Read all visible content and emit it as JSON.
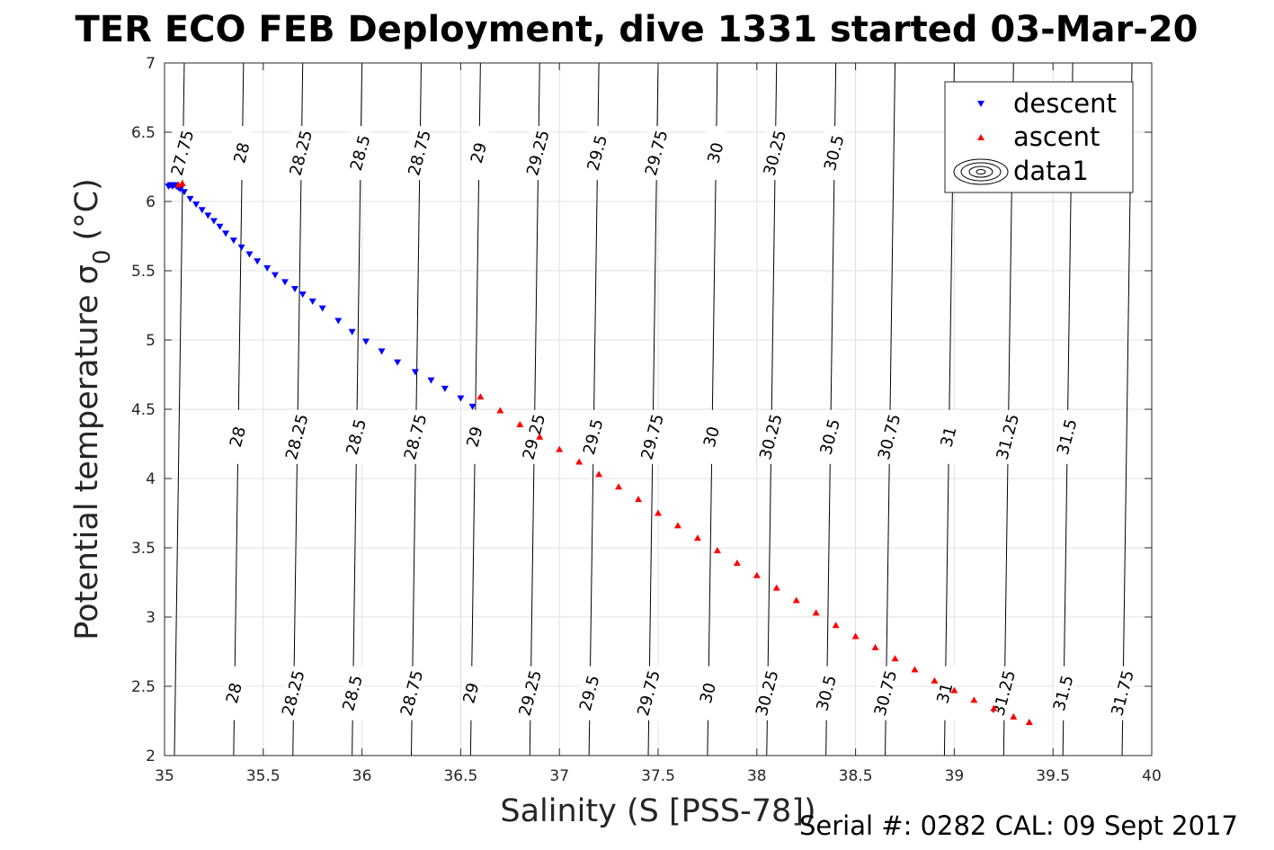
{
  "chart_data": {
    "type": "scatter",
    "title": "TER ECO FEB Deployment, dive 1331 started 03-Mar-20",
    "xlabel": "Salinity (S [PSS-78])",
    "ylabel": "Potential temperature σ",
    "ylabel_subscript": "0",
    "ylabel_unit": "(°C)",
    "xlim": [
      35,
      40
    ],
    "ylim": [
      2,
      7
    ],
    "xticks": [
      "35",
      "35.5",
      "36",
      "36.5",
      "37",
      "37.5",
      "38",
      "38.5",
      "39",
      "39.5",
      "40"
    ],
    "yticks": [
      "2",
      "2.5",
      "3",
      "3.5",
      "4",
      "4.5",
      "5",
      "5.5",
      "6",
      "6.5",
      "7"
    ],
    "grid": true,
    "legend_position": "top-right",
    "colors": {
      "descent": "#0000ff",
      "ascent": "#ff0000",
      "contour": "#000000",
      "grid": "#e0e0e0"
    },
    "series": [
      {
        "name": "descent",
        "marker": "triangle-down",
        "color": "#0000ff",
        "x": [
          35.02,
          35.03,
          35.04,
          35.05,
          35.06,
          35.07,
          35.08,
          35.1,
          35.13,
          35.16,
          35.19,
          35.22,
          35.25,
          35.28,
          35.31,
          35.35,
          35.39,
          35.43,
          35.47,
          35.52,
          35.56,
          35.61,
          35.66,
          35.7,
          35.75,
          35.8,
          35.88,
          35.95,
          36.02,
          36.1,
          36.18,
          36.27,
          36.35,
          36.42,
          36.5,
          36.56
        ],
        "y": [
          6.11,
          6.12,
          6.11,
          6.12,
          6.11,
          6.1,
          6.09,
          6.07,
          6.02,
          5.98,
          5.94,
          5.9,
          5.86,
          5.82,
          5.77,
          5.72,
          5.67,
          5.62,
          5.57,
          5.52,
          5.47,
          5.42,
          5.37,
          5.33,
          5.28,
          5.23,
          5.14,
          5.06,
          4.99,
          4.92,
          4.84,
          4.77,
          4.71,
          4.65,
          4.58,
          4.52
        ]
      },
      {
        "name": "ascent",
        "marker": "triangle-up",
        "color": "#ff0000",
        "x": [
          35.07,
          35.09,
          36.6,
          36.7,
          36.8,
          36.9,
          37.0,
          37.1,
          37.2,
          37.3,
          37.4,
          37.5,
          37.6,
          37.7,
          37.8,
          37.9,
          38.0,
          38.1,
          38.2,
          38.3,
          38.4,
          38.5,
          38.6,
          38.7,
          38.8,
          38.9,
          39.0,
          39.1,
          39.2,
          39.3,
          39.38
        ],
        "y": [
          6.12,
          6.13,
          4.59,
          4.49,
          4.39,
          4.3,
          4.21,
          4.12,
          4.03,
          3.94,
          3.85,
          3.75,
          3.66,
          3.57,
          3.48,
          3.39,
          3.3,
          3.21,
          3.12,
          3.03,
          2.94,
          2.86,
          2.78,
          2.7,
          2.62,
          2.54,
          2.47,
          2.4,
          2.34,
          2.28,
          2.24
        ]
      }
    ],
    "contour_series_name": "data1",
    "contours": [
      {
        "x_top": 35.1,
        "x_bottom": 35.05,
        "label": "27.75"
      },
      {
        "x_top": 35.4,
        "x_bottom": 35.35,
        "label": "28"
      },
      {
        "x_top": 35.7,
        "x_bottom": 35.65,
        "label": "28.25"
      },
      {
        "x_top": 36.0,
        "x_bottom": 35.95,
        "label": "28.5"
      },
      {
        "x_top": 36.3,
        "x_bottom": 36.25,
        "label": "28.75"
      },
      {
        "x_top": 36.6,
        "x_bottom": 36.55,
        "label": "29"
      },
      {
        "x_top": 36.9,
        "x_bottom": 36.85,
        "label": "29.25"
      },
      {
        "x_top": 37.2,
        "x_bottom": 37.15,
        "label": "29.5"
      },
      {
        "x_top": 37.5,
        "x_bottom": 37.45,
        "label": "29.75"
      },
      {
        "x_top": 37.8,
        "x_bottom": 37.75,
        "label": "30"
      },
      {
        "x_top": 38.1,
        "x_bottom": 38.05,
        "label": "30.25"
      },
      {
        "x_top": 38.4,
        "x_bottom": 38.35,
        "label": "30.5"
      },
      {
        "x_top": 38.7,
        "x_bottom": 38.65,
        "label": "30.75"
      },
      {
        "x_top": 39.0,
        "x_bottom": 38.95,
        "label": "31"
      },
      {
        "x_top": 39.3,
        "x_bottom": 39.25,
        "label": "31.25"
      },
      {
        "x_top": 39.6,
        "x_bottom": 39.55,
        "label": "31.5"
      },
      {
        "x_top": 39.9,
        "x_bottom": 39.85,
        "label": "31.75"
      }
    ],
    "contour_label_rows": [
      {
        "y": 6.35,
        "labels": [
          "27.75",
          "28",
          "28.25",
          "28.5",
          "28.75",
          "29",
          "29.25",
          "29.5",
          "29.75",
          "30",
          "30.25",
          "30.5"
        ]
      },
      {
        "y": 4.3,
        "labels": [
          "28",
          "28.25",
          "28.5",
          "28.75",
          "29",
          "29.25",
          "29.5",
          "29.75",
          "30",
          "30.25",
          "30.5",
          "30.75",
          "31",
          "31.25",
          "31.5"
        ]
      },
      {
        "y": 2.45,
        "labels": [
          "28",
          "28.25",
          "28.5",
          "28.75",
          "29",
          "29.25",
          "29.5",
          "29.75",
          "30",
          "30.25",
          "30.5",
          "30.75",
          "31",
          "31.25",
          "31.5",
          "31.75"
        ]
      }
    ]
  },
  "legend": {
    "items": [
      {
        "label": "descent",
        "marker": "triangle-down",
        "color": "#0000ff"
      },
      {
        "label": "ascent",
        "marker": "triangle-up",
        "color": "#ff0000"
      },
      {
        "label": "data1",
        "marker": "contour",
        "color": "#000000"
      }
    ]
  },
  "footer": {
    "serial": "Serial #: 0282  CAL: 09 Sept 2017"
  }
}
